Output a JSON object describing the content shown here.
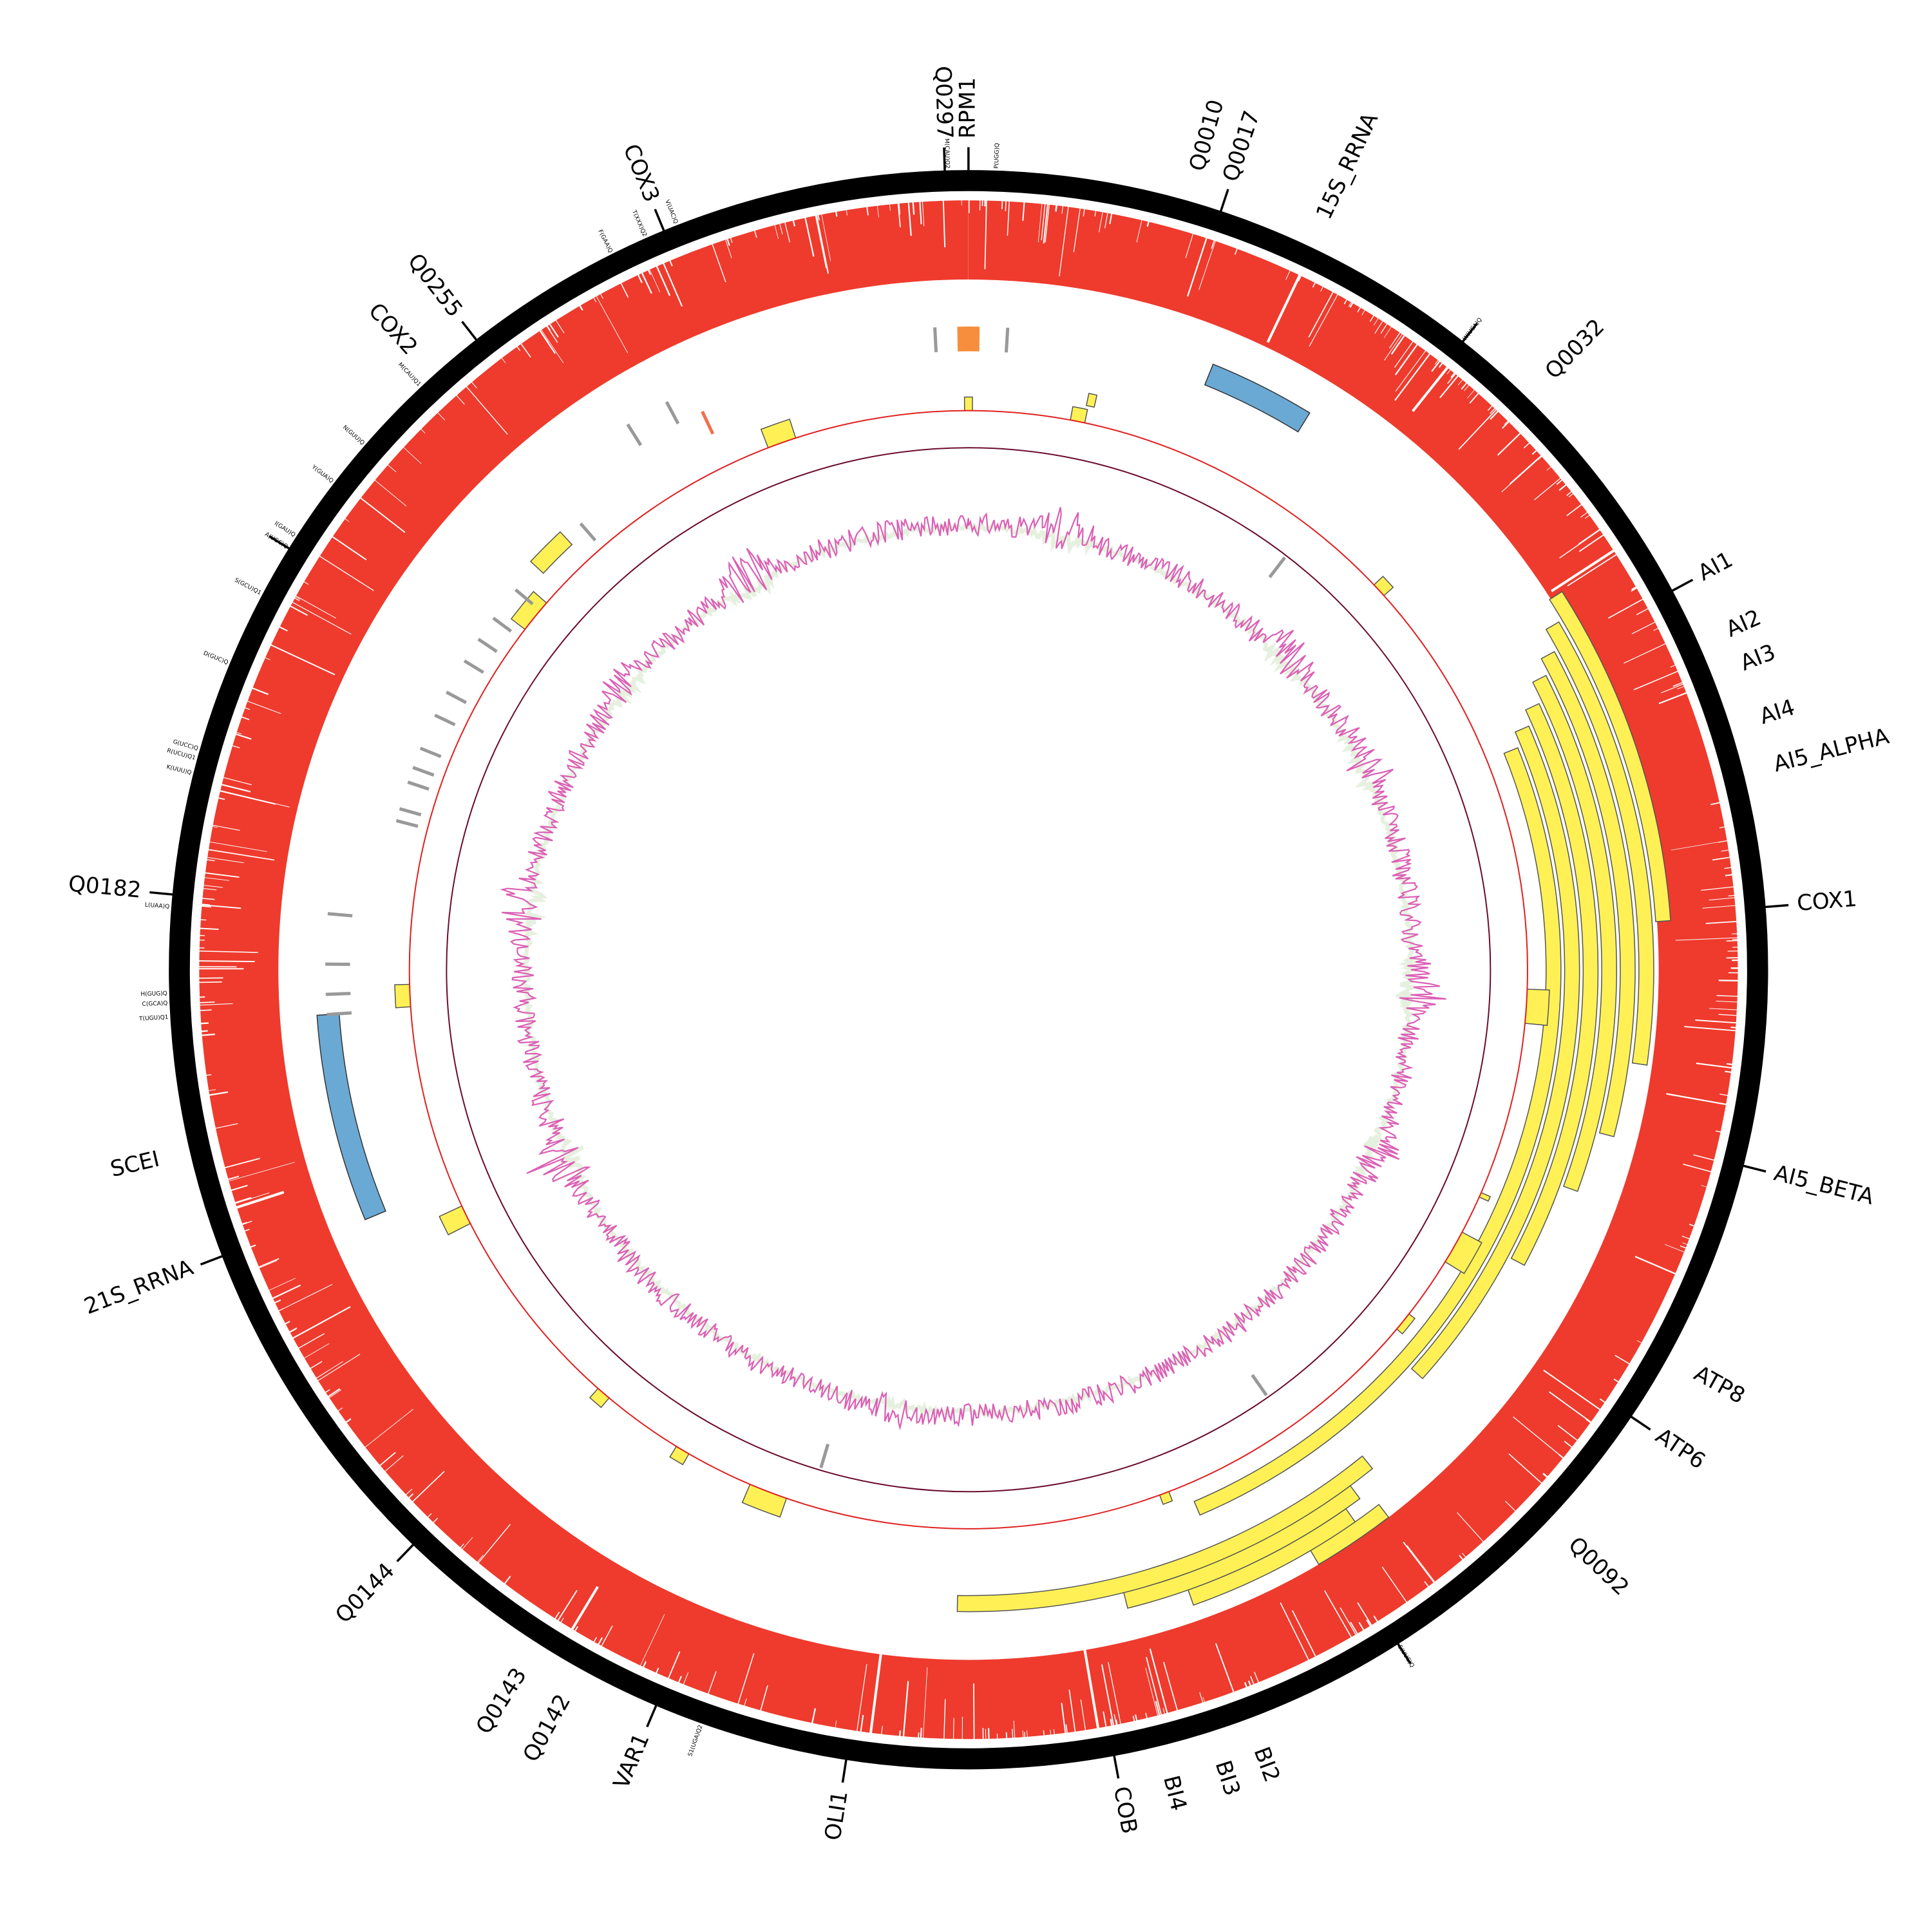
{
  "colors": {
    "backbone": "#000000",
    "coverage": "#ee3b2d",
    "gene": "#fff155",
    "rrna": "#6aa9d4",
    "trna": "#999999",
    "trna_highlight": "#f26f4c",
    "orf": "#f78e3d",
    "gc_positive": "#db5fb5",
    "gc_negative": "#e6f0df",
    "track_line_1": "#e02020",
    "track_line_2": "#6b0b30"
  },
  "major_labels": [
    {
      "text": "RPM1",
      "angle": 0
    },
    {
      "text": "Q0297",
      "angle": -1.7
    },
    {
      "text": "Q0010",
      "angle": 16.0
    },
    {
      "text": "Q0017",
      "angle": 18.4
    },
    {
      "text": "15S_RRNA",
      "angle": 25.3
    },
    {
      "text": "Q0032",
      "angle": 44.4
    },
    {
      "text": "AI1",
      "angle": 61.7
    },
    {
      "text": "AI2",
      "angle": 66.0
    },
    {
      "text": "AI3",
      "angle": 68.5
    },
    {
      "text": "AI4",
      "angle": 72.4
    },
    {
      "text": "AI5_ALPHA",
      "angle": 75.8
    },
    {
      "text": "COX1",
      "angle": 85.5
    },
    {
      "text": "AI5_BETA",
      "angle": 104.2
    },
    {
      "text": "ATP8",
      "angle": 119.0
    },
    {
      "text": "ATP6",
      "angle": 124.0
    },
    {
      "text": "Q0092",
      "angle": 133.5
    },
    {
      "text": "BI2",
      "angle": 159.5
    },
    {
      "text": "BI3",
      "angle": 162.3
    },
    {
      "text": "BI4",
      "angle": 166.0
    },
    {
      "text": "COB",
      "angle": 169.5
    },
    {
      "text": "OLI1",
      "angle": 188.8
    },
    {
      "text": "VAR1",
      "angle": 203.0
    },
    {
      "text": "Q0142",
      "angle": 209.0
    },
    {
      "text": "Q0143",
      "angle": 212.5
    },
    {
      "text": "Q0144",
      "angle": 224.0
    },
    {
      "text": "21S_RRNA",
      "angle": 249.0
    },
    {
      "text": "SCEI",
      "angle": 256.8
    },
    {
      "text": "Q0182",
      "angle": 275.4
    },
    {
      "text": "COX2",
      "angle": 318.0
    },
    {
      "text": "Q0255",
      "angle": 322.0
    },
    {
      "text": "COX3",
      "angle": 337.6
    }
  ],
  "trna_labels": [
    {
      "text": "M(CAU)Q2",
      "angle": -1.5
    },
    {
      "text": "P(UGG)Q",
      "angle": 2.0
    },
    {
      "text": "W(UCA)Q",
      "angle": 38.2
    },
    {
      "text": "E(UUC)Q",
      "angle": 147.5
    },
    {
      "text": "S1(UGA)Q2",
      "angle": 199.5
    },
    {
      "text": "L(UAA)Q",
      "angle": 274.5
    },
    {
      "text": "H(GUG)Q",
      "angle": 268.3
    },
    {
      "text": "C(GCA)Q",
      "angle": 267.6
    },
    {
      "text": "T(UGU)Q1",
      "angle": 266.6
    },
    {
      "text": "K(UUU)Q",
      "angle": 284.2
    },
    {
      "text": "R(UCU)Q1",
      "angle": 285.3
    },
    {
      "text": "G(UCC)Q",
      "angle": 286.0
    },
    {
      "text": "D(GUC)Q",
      "angle": 292.5
    },
    {
      "text": "S(GCU)Q1",
      "angle": 298.0
    },
    {
      "text": "A(UGC)Q",
      "angle": 301.8
    },
    {
      "text": "I(GAU)Q",
      "angle": 302.8
    },
    {
      "text": "Y(GUA)Q",
      "angle": 307.5
    },
    {
      "text": "N(GUU)Q",
      "angle": 311.0
    },
    {
      "text": "M(CAU)Q1",
      "angle": 316.8
    },
    {
      "text": "F(GAA)Q",
      "angle": 333.5
    },
    {
      "text": "T(XXX)Q2",
      "angle": 336.2
    },
    {
      "text": "V(UAC)Q",
      "angle": 338.6
    }
  ]
}
